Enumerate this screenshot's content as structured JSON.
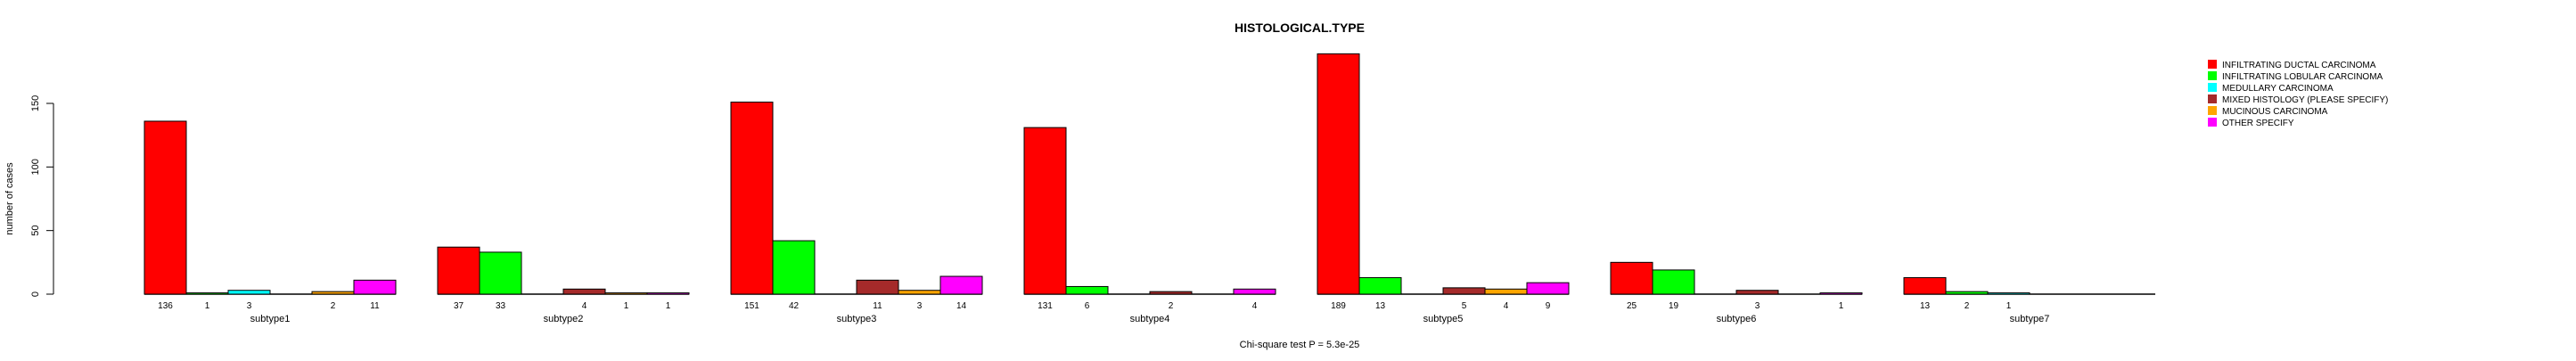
{
  "chart_data": {
    "type": "bar",
    "title": "HISTOLOGICAL.TYPE",
    "xlabel": "Chi-square test P = 5.3e-25",
    "ylabel": "number of cases",
    "ylim": [
      0,
      189
    ],
    "yticks": [
      "0",
      "50",
      "100",
      "150"
    ],
    "legend_position": "top-right",
    "categories": [
      "subtype1",
      "subtype2",
      "subtype3",
      "subtype4",
      "subtype5",
      "subtype6",
      "subtype7"
    ],
    "series": [
      {
        "name": "INFILTRATING DUCTAL CARCINOMA",
        "color": "#ff0000",
        "values": [
          136,
          37,
          151,
          131,
          189,
          25,
          13
        ]
      },
      {
        "name": "INFILTRATING LOBULAR CARCINOMA",
        "color": "#00ff00",
        "values": [
          1,
          33,
          42,
          6,
          13,
          19,
          2
        ]
      },
      {
        "name": "MEDULLARY CARCINOMA",
        "color": "#00ffff",
        "values": [
          3,
          0,
          0,
          0,
          0,
          0,
          1
        ]
      },
      {
        "name": "MIXED HISTOLOGY (PLEASE SPECIFY)",
        "color": "#a52a2a",
        "values": [
          0,
          4,
          11,
          2,
          5,
          3,
          0
        ]
      },
      {
        "name": "MUCINOUS CARCINOMA",
        "color": "#ffa500",
        "values": [
          2,
          1,
          3,
          0,
          4,
          0,
          0
        ]
      },
      {
        "name": "OTHER  SPECIFY",
        "color": "#ff00ff",
        "values": [
          11,
          1,
          14,
          4,
          9,
          1,
          0
        ]
      }
    ]
  }
}
